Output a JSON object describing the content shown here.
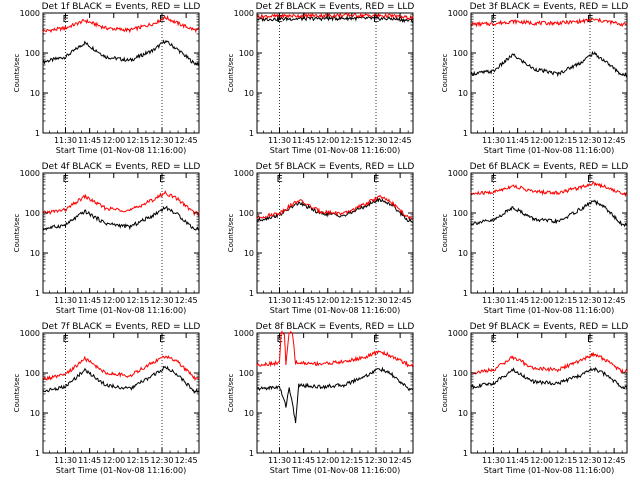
{
  "chart_data": [
    {
      "type": "line",
      "title": "Det 1f BLACK = Events, RED = LLD",
      "xlabel": "Start Time (01-Nov-08 11:16:00)",
      "ylabel": "Counts/sec",
      "yscale": "log",
      "ylim": [
        1,
        1000
      ],
      "x_ticks": [
        "11:30",
        "11:45",
        "12:00",
        "12:15",
        "12:30",
        "12:45"
      ],
      "y_ticks": [
        "1",
        "10",
        "100",
        "1000"
      ],
      "markers": [
        "11:30",
        "12:30"
      ],
      "corner_labels": [
        "E",
        "E"
      ],
      "series": [
        {
          "name": "BLACK = Events",
          "color": "#000000",
          "points": [
            [
              "11:16",
              60
            ],
            [
              "11:30",
              80
            ],
            [
              "11:42",
              180
            ],
            [
              "11:55",
              80
            ],
            [
              "12:10",
              65
            ],
            [
              "12:25",
              120
            ],
            [
              "12:32",
              200
            ],
            [
              "12:40",
              120
            ],
            [
              "12:50",
              55
            ]
          ]
        },
        {
          "name": "RED = LLD",
          "color": "#ff0000",
          "points": [
            [
              "11:16",
              350
            ],
            [
              "11:30",
              420
            ],
            [
              "11:42",
              650
            ],
            [
              "11:55",
              420
            ],
            [
              "12:10",
              370
            ],
            [
              "12:25",
              550
            ],
            [
              "12:32",
              780
            ],
            [
              "12:40",
              550
            ],
            [
              "12:50",
              380
            ]
          ]
        }
      ]
    },
    {
      "type": "line",
      "title": "Det 2f BLACK = Events, RED = LLD",
      "xlabel": "Start Time (01-Nov-08 11:16:00)",
      "ylabel": "Counts/sec",
      "yscale": "log",
      "ylim": [
        1,
        1000
      ],
      "x_ticks": [
        "11:30",
        "11:45",
        "12:00",
        "12:15",
        "12:30",
        "12:45"
      ],
      "y_ticks": [
        "1",
        "10",
        "100",
        "1000"
      ],
      "markers": [
        "11:30",
        "12:30"
      ],
      "corner_labels": [
        "E",
        "E"
      ],
      "series": [
        {
          "name": "BLACK = Events",
          "color": "#000000",
          "points": [
            [
              "11:16",
              700
            ],
            [
              "11:45",
              720
            ],
            [
              "12:15",
              740
            ],
            [
              "12:40",
              720
            ],
            [
              "12:50",
              650
            ]
          ]
        },
        {
          "name": "RED = LLD",
          "color": "#ff0000",
          "points": [
            [
              "11:16",
              820
            ],
            [
              "11:45",
              860
            ],
            [
              "12:15",
              880
            ],
            [
              "12:40",
              850
            ],
            [
              "12:50",
              760
            ]
          ]
        }
      ]
    },
    {
      "type": "line",
      "title": "Det 3f BLACK = Events, RED = LLD",
      "xlabel": "Start Time (01-Nov-08 11:16:00)",
      "ylabel": "Counts/sec",
      "yscale": "log",
      "ylim": [
        1,
        1000
      ],
      "x_ticks": [
        "11:30",
        "11:45",
        "12:00",
        "12:15",
        "12:30",
        "12:45"
      ],
      "y_ticks": [
        "1",
        "10",
        "100",
        "1000"
      ],
      "markers": [
        "11:30",
        "12:30"
      ],
      "corner_labels": [
        "E",
        "E"
      ],
      "series": [
        {
          "name": "BLACK = Events",
          "color": "#000000",
          "points": [
            [
              "11:16",
              30
            ],
            [
              "11:30",
              35
            ],
            [
              "11:42",
              90
            ],
            [
              "11:55",
              40
            ],
            [
              "12:10",
              30
            ],
            [
              "12:25",
              60
            ],
            [
              "12:32",
              100
            ],
            [
              "12:40",
              60
            ],
            [
              "12:50",
              28
            ]
          ]
        },
        {
          "name": "RED = LLD",
          "color": "#ff0000",
          "points": [
            [
              "11:16",
              520
            ],
            [
              "11:30",
              540
            ],
            [
              "11:42",
              620
            ],
            [
              "11:55",
              560
            ],
            [
              "12:10",
              560
            ],
            [
              "12:25",
              620
            ],
            [
              "12:32",
              680
            ],
            [
              "12:40",
              620
            ],
            [
              "12:50",
              520
            ]
          ]
        }
      ]
    },
    {
      "type": "line",
      "title": "Det 4f BLACK = Events, RED = LLD",
      "xlabel": "Start Time (01-Nov-08 11:16:00)",
      "ylabel": "Counts/sec",
      "yscale": "log",
      "ylim": [
        1,
        1000
      ],
      "x_ticks": [
        "11:30",
        "11:45",
        "12:00",
        "12:15",
        "12:30",
        "12:45"
      ],
      "y_ticks": [
        "1",
        "10",
        "100",
        "1000"
      ],
      "markers": [
        "11:30",
        "12:30"
      ],
      "corner_labels": [
        "E",
        "E"
      ],
      "series": [
        {
          "name": "BLACK = Events",
          "color": "#000000",
          "points": [
            [
              "11:16",
              40
            ],
            [
              "11:30",
              50
            ],
            [
              "11:42",
              110
            ],
            [
              "11:55",
              55
            ],
            [
              "12:10",
              45
            ],
            [
              "12:25",
              90
            ],
            [
              "12:32",
              140
            ],
            [
              "12:40",
              90
            ],
            [
              "12:50",
              40
            ]
          ]
        },
        {
          "name": "RED = LLD",
          "color": "#ff0000",
          "points": [
            [
              "11:16",
              100
            ],
            [
              "11:30",
              120
            ],
            [
              "11:42",
              260
            ],
            [
              "11:55",
              130
            ],
            [
              "12:10",
              115
            ],
            [
              "12:25",
              220
            ],
            [
              "12:32",
              320
            ],
            [
              "12:40",
              220
            ],
            [
              "12:50",
              100
            ]
          ]
        }
      ]
    },
    {
      "type": "line",
      "title": "Det 5f BLACK = Events, RED = LLD",
      "xlabel": "Start Time (01-Nov-08 11:16:00)",
      "ylabel": "Counts/sec",
      "yscale": "log",
      "ylim": [
        1,
        1000
      ],
      "x_ticks": [
        "11:30",
        "11:45",
        "12:00",
        "12:15",
        "12:30",
        "12:45"
      ],
      "y_ticks": [
        "1",
        "10",
        "100",
        "1000"
      ],
      "markers": [
        "11:30",
        "12:30"
      ],
      "corner_labels": [
        "E",
        "E"
      ],
      "series": [
        {
          "name": "BLACK = Events",
          "color": "#000000",
          "points": [
            [
              "11:16",
              65
            ],
            [
              "11:30",
              90
            ],
            [
              "11:42",
              180
            ],
            [
              "11:55",
              100
            ],
            [
              "12:10",
              85
            ],
            [
              "12:25",
              160
            ],
            [
              "12:32",
              220
            ],
            [
              "12:40",
              160
            ],
            [
              "12:50",
              65
            ]
          ]
        },
        {
          "name": "RED = LLD",
          "color": "#ff0000",
          "points": [
            [
              "11:16",
              75
            ],
            [
              "11:30",
              100
            ],
            [
              "11:42",
              210
            ],
            [
              "11:55",
              110
            ],
            [
              "12:10",
              95
            ],
            [
              "12:25",
              180
            ],
            [
              "12:32",
              260
            ],
            [
              "12:40",
              180
            ],
            [
              "12:50",
              75
            ]
          ]
        }
      ]
    },
    {
      "type": "line",
      "title": "Det 6f BLACK = Events, RED = LLD",
      "xlabel": "Start Time (01-Nov-08 11:16:00)",
      "ylabel": "Counts/sec",
      "yscale": "log",
      "ylim": [
        1,
        1000
      ],
      "x_ticks": [
        "11:30",
        "11:45",
        "12:00",
        "12:15",
        "12:30",
        "12:45"
      ],
      "y_ticks": [
        "1",
        "10",
        "100",
        "1000"
      ],
      "markers": [
        "11:30",
        "12:30"
      ],
      "corner_labels": [
        "E",
        "E"
      ],
      "series": [
        {
          "name": "BLACK = Events",
          "color": "#000000",
          "points": [
            [
              "11:16",
              55
            ],
            [
              "11:30",
              65
            ],
            [
              "11:42",
              140
            ],
            [
              "11:55",
              70
            ],
            [
              "12:10",
              60
            ],
            [
              "12:25",
              130
            ],
            [
              "12:32",
              200
            ],
            [
              "12:40",
              130
            ],
            [
              "12:50",
              50
            ]
          ]
        },
        {
          "name": "RED = LLD",
          "color": "#ff0000",
          "points": [
            [
              "11:16",
              300
            ],
            [
              "11:30",
              330
            ],
            [
              "11:42",
              480
            ],
            [
              "11:55",
              340
            ],
            [
              "12:10",
              320
            ],
            [
              "12:25",
              450
            ],
            [
              "12:32",
              560
            ],
            [
              "12:40",
              450
            ],
            [
              "12:50",
              300
            ]
          ]
        }
      ]
    },
    {
      "type": "line",
      "title": "Det 7f BLACK = Events, RED = LLD",
      "xlabel": "Start Time (01-Nov-08 11:16:00)",
      "ylabel": "Counts/sec",
      "yscale": "log",
      "ylim": [
        1,
        1000
      ],
      "x_ticks": [
        "11:30",
        "11:45",
        "12:00",
        "12:15",
        "12:30",
        "12:45"
      ],
      "y_ticks": [
        "1",
        "10",
        "100",
        "1000"
      ],
      "markers": [
        "11:30",
        "12:30"
      ],
      "corner_labels": [
        "E",
        "E"
      ],
      "series": [
        {
          "name": "BLACK = Events",
          "color": "#000000",
          "points": [
            [
              "11:16",
              35
            ],
            [
              "11:30",
              45
            ],
            [
              "11:42",
              120
            ],
            [
              "11:55",
              50
            ],
            [
              "12:10",
              40
            ],
            [
              "12:25",
              90
            ],
            [
              "12:32",
              140
            ],
            [
              "12:40",
              90
            ],
            [
              "12:50",
              35
            ]
          ]
        },
        {
          "name": "RED = LLD",
          "color": "#ff0000",
          "points": [
            [
              "11:16",
              70
            ],
            [
              "11:30",
              90
            ],
            [
              "11:42",
              230
            ],
            [
              "11:55",
              100
            ],
            [
              "12:10",
              85
            ],
            [
              "12:25",
              190
            ],
            [
              "12:32",
              260
            ],
            [
              "12:40",
              190
            ],
            [
              "12:50",
              75
            ]
          ]
        }
      ]
    },
    {
      "type": "line",
      "title": "Det 8f BLACK = Events, RED = LLD",
      "xlabel": "Start Time (01-Nov-08 11:16:00)",
      "ylabel": "Counts/sec",
      "yscale": "log",
      "ylim": [
        1,
        1000
      ],
      "x_ticks": [
        "11:30",
        "11:45",
        "12:00",
        "12:15",
        "12:30",
        "12:45"
      ],
      "y_ticks": [
        "1",
        "10",
        "100",
        "1000"
      ],
      "markers": [
        "11:30",
        "12:30"
      ],
      "corner_labels": [
        "E",
        "E"
      ],
      "series": [
        {
          "name": "BLACK = Events",
          "color": "#000000",
          "points": [
            [
              "11:16",
              40
            ],
            [
              "11:30",
              45
            ],
            [
              "11:34",
              15
            ],
            [
              "11:36",
              45
            ],
            [
              "11:40",
              6
            ],
            [
              "11:42",
              50
            ],
            [
              "11:55",
              45
            ],
            [
              "12:10",
              50
            ],
            [
              "12:25",
              90
            ],
            [
              "12:32",
              130
            ],
            [
              "12:40",
              90
            ],
            [
              "12:50",
              40
            ]
          ]
        },
        {
          "name": "RED = LLD",
          "color": "#ff0000",
          "points": [
            [
              "11:16",
              160
            ],
            [
              "11:30",
              180
            ],
            [
              "11:31",
              1000
            ],
            [
              "11:33",
              1000
            ],
            [
              "11:34",
              170
            ],
            [
              "11:36",
              1000
            ],
            [
              "11:38",
              1000
            ],
            [
              "11:40",
              180
            ],
            [
              "11:55",
              170
            ],
            [
              "12:10",
              190
            ],
            [
              "12:25",
              260
            ],
            [
              "12:32",
              350
            ],
            [
              "12:40",
              260
            ],
            [
              "12:50",
              160
            ]
          ]
        }
      ]
    },
    {
      "type": "line",
      "title": "Det 9f BLACK = Events, RED = LLD",
      "xlabel": "Start Time (01-Nov-08 11:16:00)",
      "ylabel": "Counts/sec",
      "yscale": "log",
      "ylim": [
        1,
        1000
      ],
      "x_ticks": [
        "11:30",
        "11:45",
        "12:00",
        "12:15",
        "12:30",
        "12:45"
      ],
      "y_ticks": [
        "1",
        "10",
        "100",
        "1000"
      ],
      "markers": [
        "11:30",
        "12:30"
      ],
      "corner_labels": [
        "E",
        "E"
      ],
      "series": [
        {
          "name": "BLACK = Events",
          "color": "#000000",
          "points": [
            [
              "11:16",
              45
            ],
            [
              "11:30",
              55
            ],
            [
              "11:42",
              120
            ],
            [
              "11:55",
              60
            ],
            [
              "12:10",
              55
            ],
            [
              "12:25",
              90
            ],
            [
              "12:32",
              130
            ],
            [
              "12:40",
              90
            ],
            [
              "12:50",
              45
            ]
          ]
        },
        {
          "name": "RED = LLD",
          "color": "#ff0000",
          "points": [
            [
              "11:16",
              100
            ],
            [
              "11:30",
              120
            ],
            [
              "11:42",
              250
            ],
            [
              "11:55",
              130
            ],
            [
              "12:10",
              120
            ],
            [
              "12:25",
              210
            ],
            [
              "12:32",
              300
            ],
            [
              "12:40",
              210
            ],
            [
              "12:50",
              110
            ]
          ]
        }
      ]
    }
  ]
}
